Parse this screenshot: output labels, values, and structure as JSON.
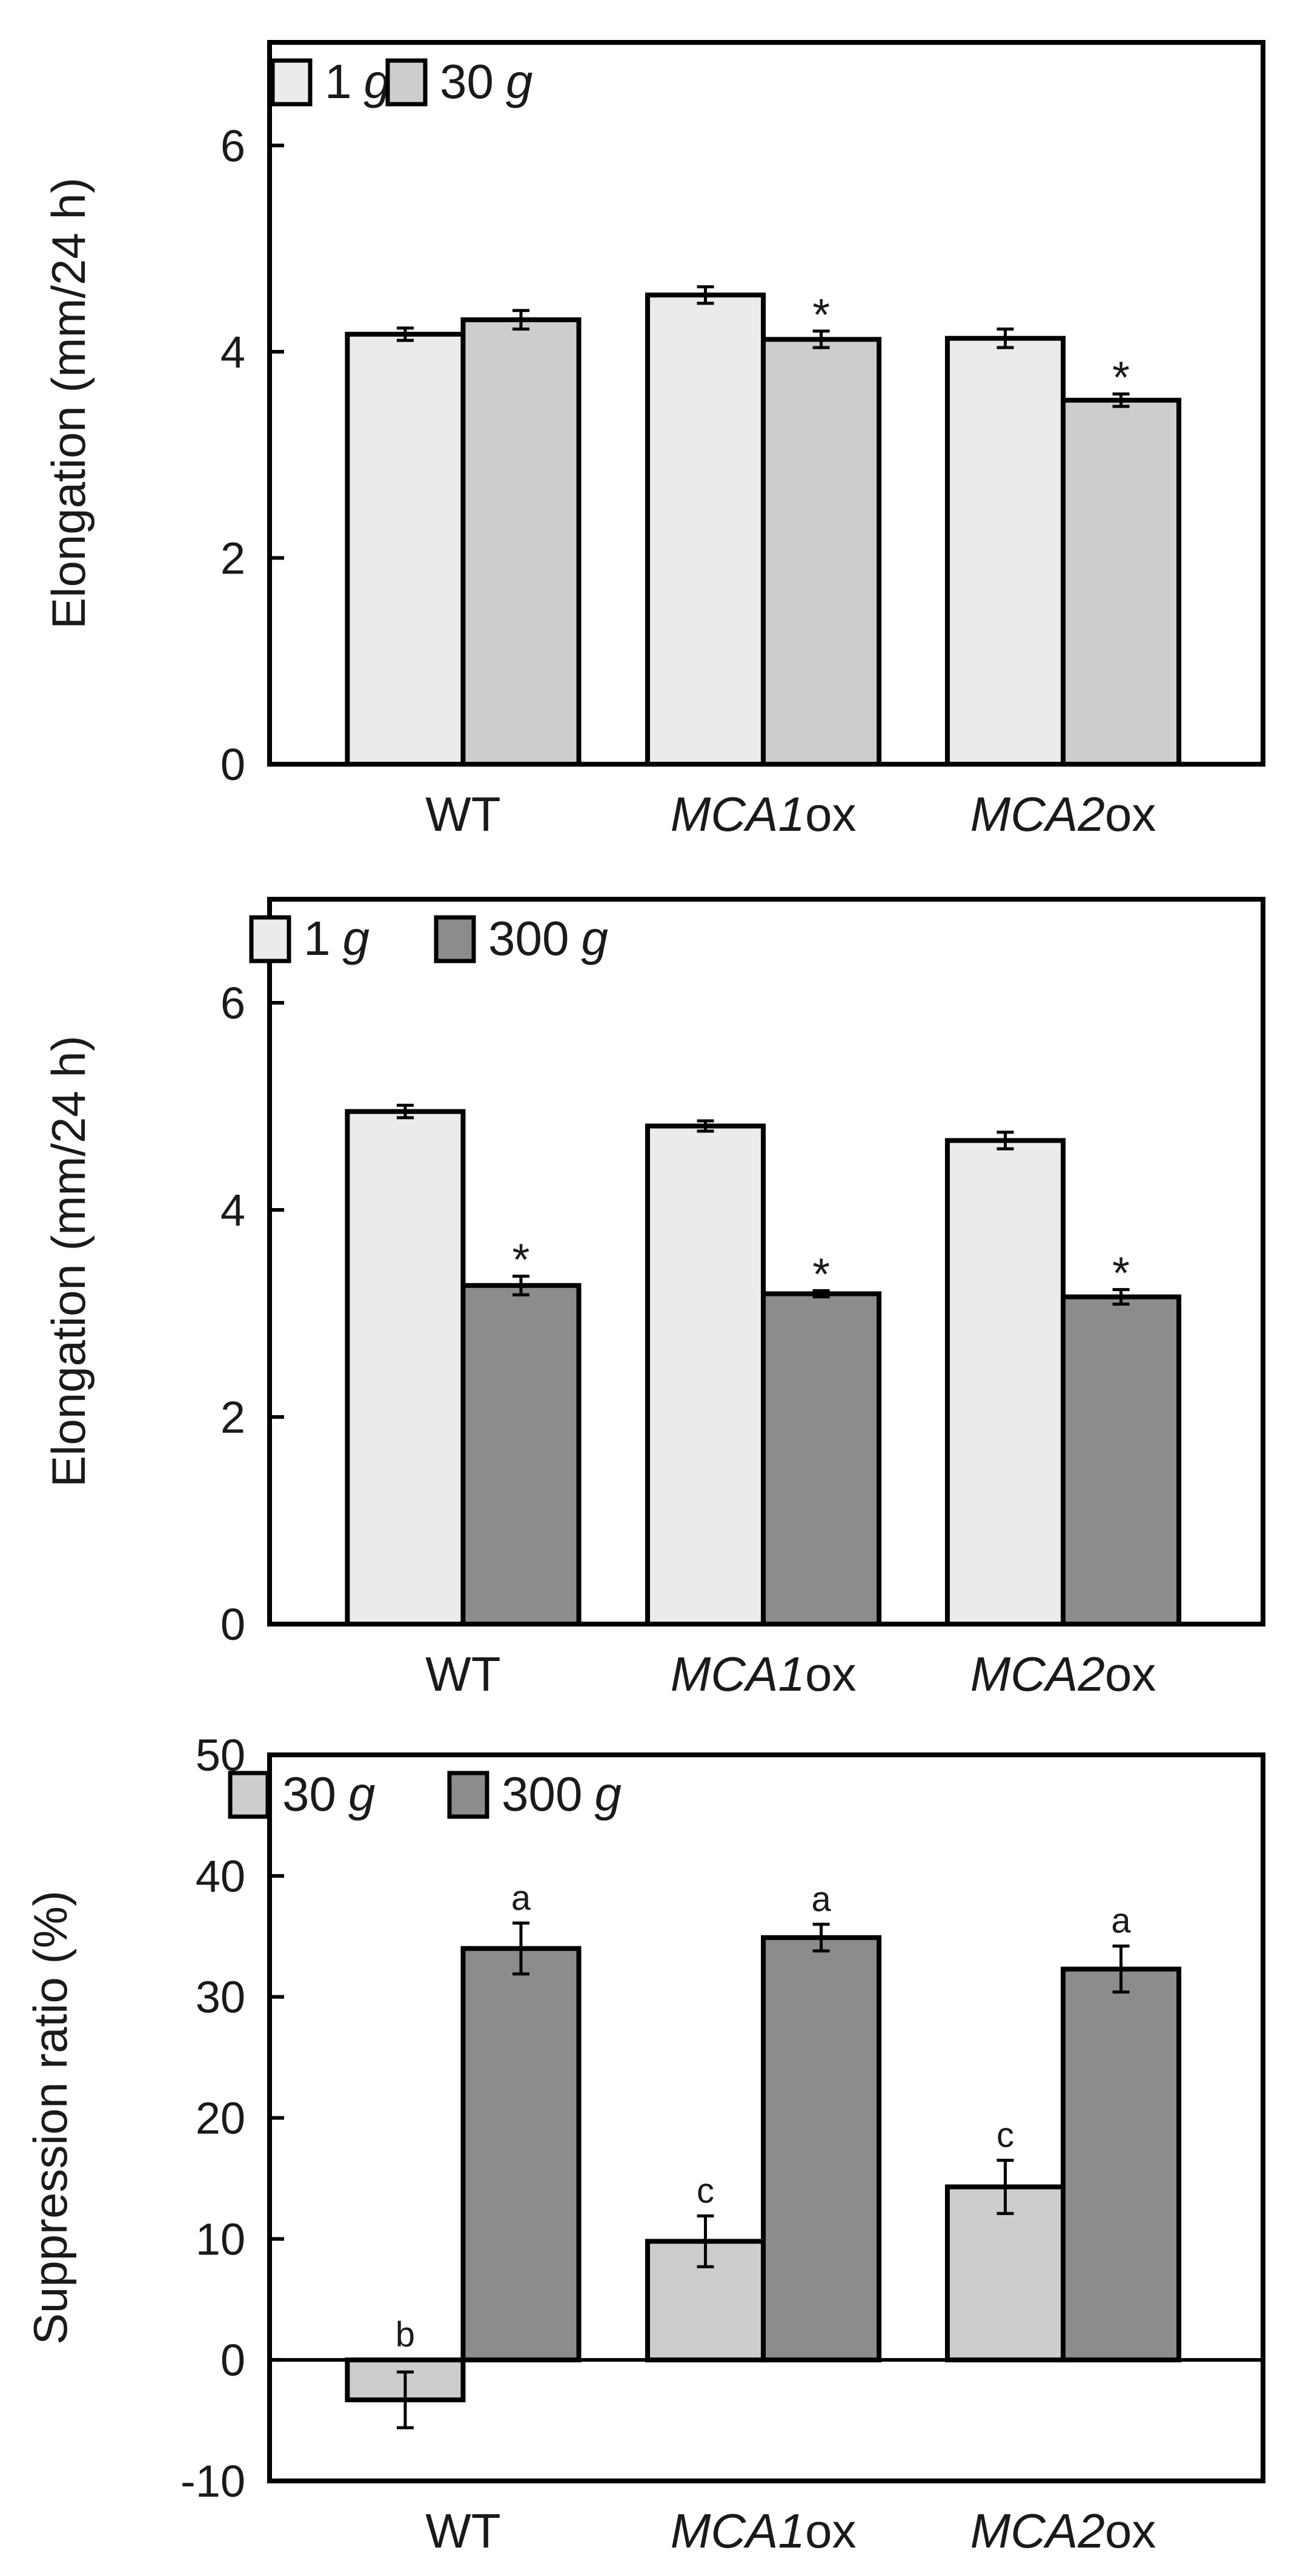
{
  "chart_data": [
    {
      "type": "bar",
      "title": "",
      "xlabel": "",
      "ylabel": "Elongation (mm/24 h)",
      "ylim": [
        0,
        7
      ],
      "yticks": [
        0,
        2,
        4,
        6
      ],
      "yticklabels": [
        "0",
        "2",
        "4",
        "6"
      ],
      "categories": [
        {
          "prefix": "WT",
          "suffix": ""
        },
        {
          "prefix": "MCA1",
          "suffix": "ox"
        },
        {
          "prefix": "MCA2",
          "suffix": "ox"
        }
      ],
      "legend_position": "top-left",
      "series": [
        {
          "name": "1",
          "unit": "g",
          "color": "#ebebeb",
          "values": [
            4.17,
            4.55,
            4.13
          ],
          "errors": [
            0.06,
            0.08,
            0.09
          ],
          "annotations": [
            "",
            "",
            ""
          ]
        },
        {
          "name": "30",
          "unit": "g",
          "color": "#cdcdcd",
          "values": [
            4.31,
            4.12,
            3.53
          ],
          "errors": [
            0.09,
            0.08,
            0.06
          ],
          "annotations": [
            "",
            "*",
            "*"
          ]
        }
      ]
    },
    {
      "type": "bar",
      "title": "",
      "xlabel": "",
      "ylabel": "Elongation (mm/24 h)",
      "ylim": [
        0,
        7
      ],
      "yticks": [
        0,
        2,
        4,
        6
      ],
      "yticklabels": [
        "0",
        "2",
        "4",
        "6"
      ],
      "categories": [
        {
          "prefix": "WT",
          "suffix": ""
        },
        {
          "prefix": "MCA1",
          "suffix": "ox"
        },
        {
          "prefix": "MCA2",
          "suffix": "ox"
        }
      ],
      "legend_position": "top-left",
      "series": [
        {
          "name": "1",
          "unit": "g",
          "color": "#ebebeb",
          "values": [
            4.95,
            4.81,
            4.67
          ],
          "errors": [
            0.06,
            0.05,
            0.08
          ],
          "annotations": [
            "",
            "",
            ""
          ]
        },
        {
          "name": "300",
          "unit": "g",
          "color": "#8c8c8c",
          "values": [
            3.27,
            3.19,
            3.16
          ],
          "errors": [
            0.09,
            0.03,
            0.07
          ],
          "annotations": [
            "*",
            "*",
            "*"
          ]
        }
      ]
    },
    {
      "type": "bar",
      "title": "",
      "xlabel": "",
      "ylabel": "Suppression ratio (%)",
      "ylim": [
        -10,
        50
      ],
      "yticks": [
        -10,
        0,
        10,
        20,
        30,
        40,
        50
      ],
      "yticklabels": [
        "-10",
        "0",
        "10",
        "20",
        "30",
        "40",
        "50"
      ],
      "zero_line": true,
      "categories": [
        {
          "prefix": "WT",
          "suffix": ""
        },
        {
          "prefix": "MCA1",
          "suffix": "ox"
        },
        {
          "prefix": "MCA2",
          "suffix": "ox"
        }
      ],
      "legend_position": "top-left",
      "series": [
        {
          "name": "30",
          "unit": "g",
          "color": "#cdcdcd",
          "values": [
            -3.3,
            9.8,
            14.3
          ],
          "errors": [
            2.3,
            2.1,
            2.2
          ],
          "annotations": [
            "b",
            "c",
            "c"
          ]
        },
        {
          "name": "300",
          "unit": "g",
          "color": "#8c8c8c",
          "values": [
            34.0,
            34.9,
            32.3
          ],
          "errors": [
            2.1,
            1.1,
            1.9
          ],
          "annotations": [
            "a",
            "a",
            "a"
          ]
        }
      ]
    }
  ]
}
